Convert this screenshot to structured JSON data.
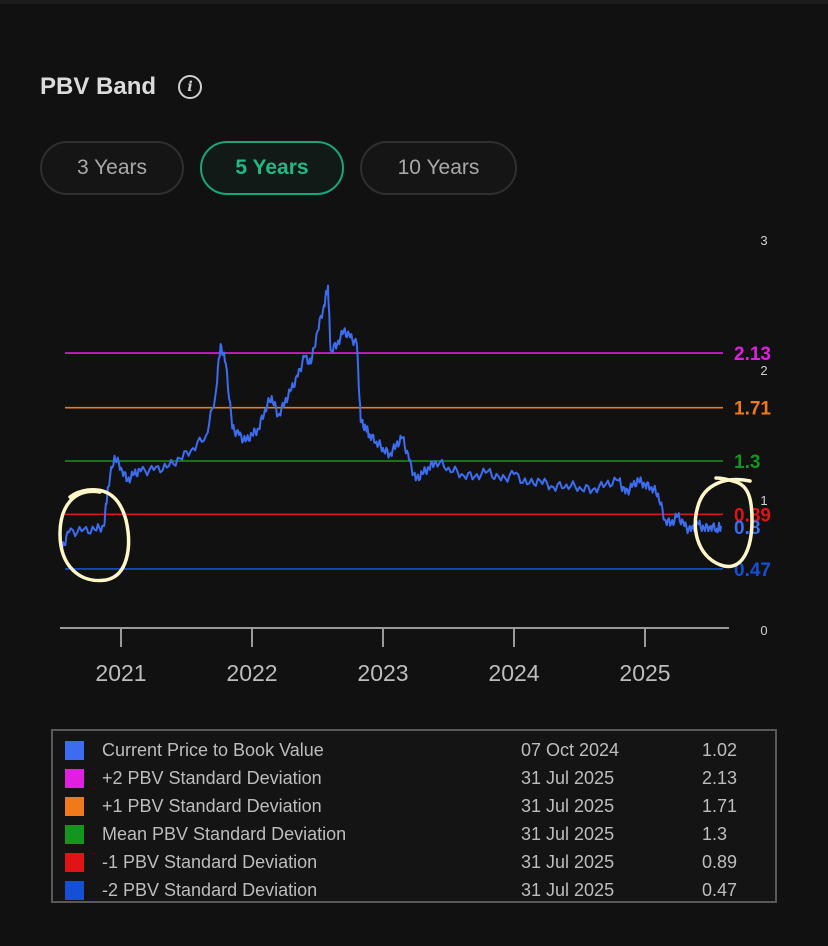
{
  "header": {
    "title": "PBV Band",
    "info_icon": "info-icon"
  },
  "tabs": [
    {
      "label": "3 Years",
      "active": false
    },
    {
      "label": "5 Years",
      "active": true
    },
    {
      "label": "10 Years",
      "active": false
    }
  ],
  "colors": {
    "current": "#3c6cf0",
    "plus2": "#e11fe1",
    "plus1": "#f07a1a",
    "mean": "#14961e",
    "minus1": "#e01414",
    "minus2": "#1450d6",
    "accent": "#20b887"
  },
  "chart_data": {
    "type": "line",
    "x_ticks": [
      "2021",
      "2022",
      "2023",
      "2024",
      "2025"
    ],
    "y_ticks": [
      "0",
      "1",
      "2",
      "3"
    ],
    "ylim": [
      0,
      3
    ],
    "bands": [
      {
        "key": "plus2",
        "value": 2.13,
        "label": "2.13"
      },
      {
        "key": "plus1",
        "value": 1.71,
        "label": "1.71"
      },
      {
        "key": "mean",
        "value": 1.3,
        "label": "1.3"
      },
      {
        "key": "minus1",
        "value": 0.89,
        "label": "0.89"
      },
      {
        "key": "minus2",
        "value": 0.47,
        "label": "0.47"
      }
    ],
    "current_label": "0.8",
    "series": [
      {
        "key": "current",
        "x": [
          2020.55,
          2020.6,
          2020.7,
          2020.8,
          2020.87,
          2020.9,
          2020.95,
          2021.0,
          2021.05,
          2021.1,
          2021.15,
          2021.25,
          2021.35,
          2021.45,
          2021.55,
          2021.65,
          2021.72,
          2021.76,
          2021.8,
          2021.85,
          2021.9,
          2021.95,
          2022.0,
          2022.05,
          2022.1,
          2022.15,
          2022.2,
          2022.25,
          2022.3,
          2022.35,
          2022.4,
          2022.45,
          2022.5,
          2022.55,
          2022.58,
          2022.6,
          2022.65,
          2022.7,
          2022.75,
          2022.8,
          2022.83,
          2022.87,
          2022.9,
          2022.95,
          2023.0,
          2023.05,
          2023.1,
          2023.15,
          2023.2,
          2023.25,
          2023.3,
          2023.35,
          2023.4,
          2023.5,
          2023.6,
          2023.7,
          2023.8,
          2023.9,
          2024.0,
          2024.1,
          2024.2,
          2024.3,
          2024.4,
          2024.5,
          2024.6,
          2024.7,
          2024.8,
          2024.85,
          2024.9,
          2024.95,
          2025.0,
          2025.05,
          2025.1,
          2025.15,
          2025.2,
          2025.25,
          2025.3,
          2025.35,
          2025.4,
          2025.45,
          2025.5,
          2025.55,
          2025.58
        ],
        "values": [
          0.62,
          0.75,
          0.76,
          0.77,
          0.8,
          1.1,
          1.34,
          1.25,
          1.15,
          1.2,
          1.22,
          1.23,
          1.25,
          1.32,
          1.4,
          1.5,
          1.8,
          2.2,
          2.05,
          1.55,
          1.5,
          1.45,
          1.5,
          1.55,
          1.7,
          1.8,
          1.65,
          1.75,
          1.85,
          1.95,
          2.1,
          2.05,
          2.3,
          2.5,
          2.65,
          2.15,
          2.2,
          2.3,
          2.25,
          2.2,
          1.6,
          1.55,
          1.5,
          1.45,
          1.4,
          1.35,
          1.42,
          1.48,
          1.3,
          1.15,
          1.2,
          1.25,
          1.3,
          1.25,
          1.2,
          1.18,
          1.22,
          1.15,
          1.2,
          1.12,
          1.15,
          1.1,
          1.12,
          1.1,
          1.08,
          1.12,
          1.15,
          1.05,
          1.1,
          1.15,
          1.12,
          1.1,
          1.05,
          0.85,
          0.82,
          0.88,
          0.8,
          0.76,
          0.82,
          0.78,
          0.8,
          0.78,
          0.8
        ]
      }
    ]
  },
  "legend": [
    {
      "key": "current",
      "label": "Current Price to Book Value",
      "date": "07 Oct 2024",
      "value": "1.02"
    },
    {
      "key": "plus2",
      "label": "+2 PBV Standard Deviation",
      "date": "31 Jul 2025",
      "value": "2.13"
    },
    {
      "key": "plus1",
      "label": "+1 PBV Standard Deviation",
      "date": "31 Jul 2025",
      "value": "1.71"
    },
    {
      "key": "mean",
      "label": "Mean PBV Standard Deviation",
      "date": "31 Jul 2025",
      "value": "1.3"
    },
    {
      "key": "minus1",
      "label": "-1 PBV Standard Deviation",
      "date": "31 Jul 2025",
      "value": "0.89"
    },
    {
      "key": "minus2",
      "label": "-2 PBV Standard Deviation",
      "date": "31 Jul 2025",
      "value": "0.47"
    }
  ]
}
